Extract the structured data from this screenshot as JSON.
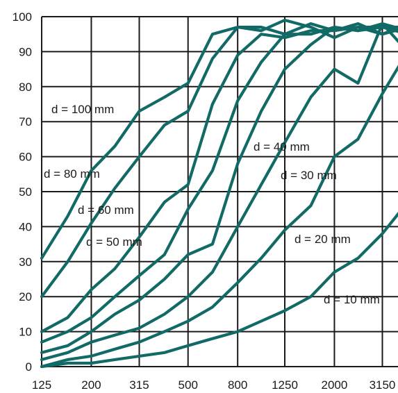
{
  "chart_data": {
    "type": "line",
    "title": "",
    "xlabel": "",
    "ylabel": "",
    "x_ticks": [
      "125",
      "200",
      "315",
      "500",
      "800",
      "1250",
      "2000",
      "3150"
    ],
    "x_scale": "log",
    "xlim": [
      125,
      4000
    ],
    "ylim": [
      0,
      100
    ],
    "y_ticks": [
      0,
      10,
      20,
      30,
      40,
      50,
      60,
      70,
      80,
      90,
      100
    ],
    "grid": true,
    "line_color": "#126a66",
    "series": [
      {
        "name": "d = 100 mm",
        "points": [
          [
            125,
            31
          ],
          [
            160,
            43
          ],
          [
            200,
            56
          ],
          [
            250,
            63
          ],
          [
            315,
            73
          ],
          [
            400,
            77
          ],
          [
            500,
            81
          ],
          [
            630,
            95
          ],
          [
            800,
            97
          ],
          [
            1000,
            96
          ],
          [
            1250,
            99
          ],
          [
            1600,
            97
          ],
          [
            2000,
            94
          ],
          [
            2500,
            97
          ],
          [
            3150,
            97
          ],
          [
            4000,
            97
          ]
        ]
      },
      {
        "name": "d = 80 mm",
        "points": [
          [
            125,
            20
          ],
          [
            160,
            30
          ],
          [
            200,
            41
          ],
          [
            250,
            51
          ],
          [
            315,
            60
          ],
          [
            400,
            69
          ],
          [
            500,
            73
          ],
          [
            630,
            88
          ],
          [
            800,
            97
          ],
          [
            1000,
            97
          ],
          [
            1250,
            95
          ],
          [
            1600,
            98
          ],
          [
            2000,
            96
          ],
          [
            2500,
            97
          ],
          [
            3150,
            95
          ],
          [
            4000,
            98
          ]
        ]
      },
      {
        "name": "d = 60 mm",
        "points": [
          [
            125,
            10
          ],
          [
            160,
            14
          ],
          [
            200,
            22
          ],
          [
            250,
            28
          ],
          [
            315,
            37
          ],
          [
            400,
            47
          ],
          [
            500,
            52
          ],
          [
            630,
            75
          ],
          [
            800,
            89
          ],
          [
            1000,
            95
          ],
          [
            1250,
            94
          ],
          [
            1600,
            96
          ],
          [
            2000,
            96
          ],
          [
            2500,
            98
          ],
          [
            3150,
            95
          ],
          [
            4000,
            97
          ]
        ]
      },
      {
        "name": "d = 50 mm",
        "points": [
          [
            125,
            7
          ],
          [
            160,
            10
          ],
          [
            200,
            14
          ],
          [
            250,
            20
          ],
          [
            315,
            26
          ],
          [
            400,
            32
          ],
          [
            500,
            45
          ],
          [
            630,
            56
          ],
          [
            800,
            76
          ],
          [
            1000,
            87
          ],
          [
            1250,
            95
          ],
          [
            1600,
            95
          ],
          [
            2000,
            97
          ],
          [
            2500,
            96
          ],
          [
            3150,
            98
          ],
          [
            4000,
            96
          ]
        ]
      },
      {
        "name": "d = 40 mm",
        "points": [
          [
            125,
            4
          ],
          [
            160,
            6
          ],
          [
            200,
            10
          ],
          [
            250,
            15
          ],
          [
            315,
            19
          ],
          [
            400,
            25
          ],
          [
            500,
            32
          ],
          [
            630,
            35
          ],
          [
            800,
            58
          ],
          [
            1000,
            73
          ],
          [
            1250,
            85
          ],
          [
            1600,
            92
          ],
          [
            2000,
            97
          ],
          [
            2500,
            96
          ],
          [
            3150,
            97
          ],
          [
            4000,
            95
          ]
        ]
      },
      {
        "name": "d = 30 mm",
        "points": [
          [
            125,
            2
          ],
          [
            160,
            4
          ],
          [
            200,
            7
          ],
          [
            250,
            9
          ],
          [
            315,
            11
          ],
          [
            400,
            15
          ],
          [
            500,
            20
          ],
          [
            630,
            27
          ],
          [
            800,
            40
          ],
          [
            1000,
            52
          ],
          [
            1250,
            64
          ],
          [
            1600,
            77
          ],
          [
            2000,
            85
          ],
          [
            2500,
            81
          ],
          [
            3150,
            98
          ],
          [
            4000,
            90
          ]
        ]
      },
      {
        "name": "d = 20 mm",
        "points": [
          [
            125,
            0
          ],
          [
            160,
            2
          ],
          [
            200,
            3
          ],
          [
            250,
            5
          ],
          [
            315,
            7
          ],
          [
            400,
            10
          ],
          [
            500,
            13
          ],
          [
            630,
            17
          ],
          [
            800,
            24
          ],
          [
            1000,
            31
          ],
          [
            1250,
            39
          ],
          [
            1600,
            46
          ],
          [
            2000,
            60
          ],
          [
            2500,
            65
          ],
          [
            3150,
            78
          ],
          [
            4000,
            90
          ]
        ]
      },
      {
        "name": "d = 10 mm",
        "points": [
          [
            125,
            0
          ],
          [
            160,
            1
          ],
          [
            200,
            1
          ],
          [
            250,
            2
          ],
          [
            315,
            3
          ],
          [
            400,
            4
          ],
          [
            500,
            6
          ],
          [
            630,
            8
          ],
          [
            800,
            10
          ],
          [
            1000,
            13
          ],
          [
            1250,
            16
          ],
          [
            1600,
            20
          ],
          [
            2000,
            27
          ],
          [
            2500,
            31
          ],
          [
            3150,
            38
          ],
          [
            4000,
            47
          ]
        ]
      }
    ]
  }
}
